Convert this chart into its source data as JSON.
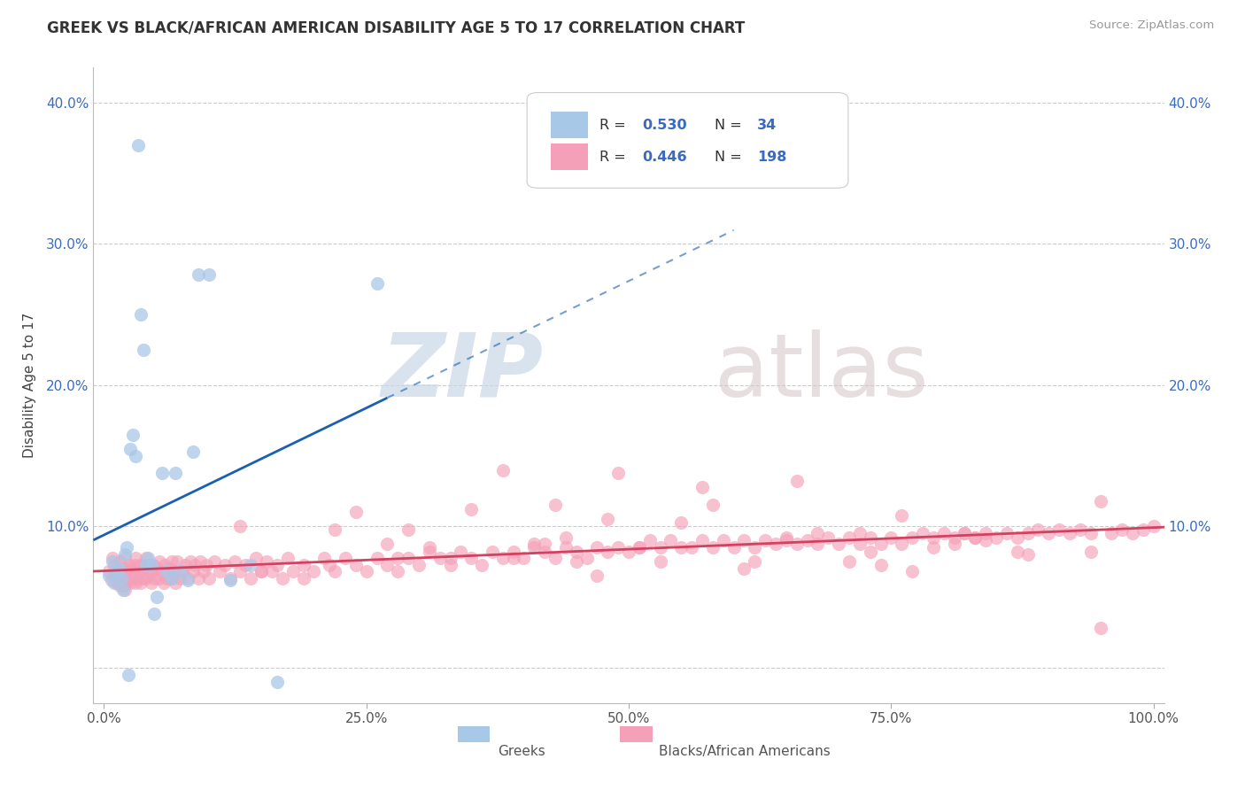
{
  "title": "GREEK VS BLACK/AFRICAN AMERICAN DISABILITY AGE 5 TO 17 CORRELATION CHART",
  "source": "Source: ZipAtlas.com",
  "ylabel": "Disability Age 5 to 17",
  "xlim": [
    -0.01,
    1.01
  ],
  "ylim": [
    -0.025,
    0.425
  ],
  "xticks": [
    0.0,
    0.25,
    0.5,
    0.75,
    1.0
  ],
  "xticklabels": [
    "0.0%",
    "25.0%",
    "50.0%",
    "75.0%",
    "100.0%"
  ],
  "yticks": [
    0.0,
    0.1,
    0.2,
    0.3,
    0.4
  ],
  "yticklabels": [
    "",
    "10.0%",
    "20.0%",
    "30.0%",
    "40.0%"
  ],
  "right_ytick_labels": [
    "",
    "10.0%",
    "20.0%",
    "30.0%",
    "40.0%"
  ],
  "greek_color": "#a8c8e8",
  "black_color": "#f4a0b8",
  "greek_line_color": "#1a5fb4",
  "black_line_color": "#d44060",
  "background_color": "#ffffff",
  "greek_scatter_x": [
    0.005,
    0.008,
    0.01,
    0.012,
    0.015,
    0.017,
    0.018,
    0.02,
    0.022,
    0.023,
    0.025,
    0.028,
    0.03,
    0.033,
    0.035,
    0.038,
    0.04,
    0.042,
    0.045,
    0.048,
    0.05,
    0.055,
    0.06,
    0.065,
    0.068,
    0.072,
    0.08,
    0.085,
    0.09,
    0.1,
    0.12,
    0.14,
    0.165,
    0.26
  ],
  "greek_scatter_y": [
    0.065,
    0.075,
    0.06,
    0.068,
    0.07,
    0.063,
    0.055,
    0.08,
    0.085,
    -0.005,
    0.155,
    0.165,
    0.15,
    0.37,
    0.25,
    0.225,
    0.073,
    0.078,
    0.073,
    0.038,
    0.05,
    0.138,
    0.068,
    0.063,
    0.138,
    0.068,
    0.062,
    0.153,
    0.278,
    0.278,
    0.062,
    0.073,
    -0.01,
    0.272
  ],
  "black_scatter_x": [
    0.005,
    0.007,
    0.008,
    0.01,
    0.01,
    0.012,
    0.013,
    0.015,
    0.015,
    0.017,
    0.018,
    0.019,
    0.02,
    0.02,
    0.02,
    0.022,
    0.023,
    0.024,
    0.025,
    0.025,
    0.027,
    0.028,
    0.03,
    0.03,
    0.03,
    0.032,
    0.033,
    0.035,
    0.035,
    0.037,
    0.038,
    0.04,
    0.04,
    0.042,
    0.043,
    0.045,
    0.045,
    0.047,
    0.048,
    0.05,
    0.052,
    0.053,
    0.055,
    0.057,
    0.058,
    0.06,
    0.062,
    0.063,
    0.065,
    0.067,
    0.068,
    0.07,
    0.072,
    0.075,
    0.077,
    0.08,
    0.082,
    0.085,
    0.087,
    0.09,
    0.092,
    0.095,
    0.098,
    0.1,
    0.105,
    0.11,
    0.115,
    0.12,
    0.125,
    0.13,
    0.135,
    0.14,
    0.145,
    0.15,
    0.155,
    0.16,
    0.165,
    0.17,
    0.175,
    0.18,
    0.19,
    0.2,
    0.21,
    0.215,
    0.22,
    0.23,
    0.24,
    0.25,
    0.26,
    0.27,
    0.28,
    0.29,
    0.3,
    0.31,
    0.32,
    0.33,
    0.34,
    0.35,
    0.36,
    0.37,
    0.38,
    0.39,
    0.4,
    0.41,
    0.42,
    0.43,
    0.44,
    0.45,
    0.46,
    0.47,
    0.48,
    0.49,
    0.5,
    0.51,
    0.52,
    0.53,
    0.54,
    0.55,
    0.57,
    0.58,
    0.59,
    0.6,
    0.61,
    0.62,
    0.63,
    0.64,
    0.65,
    0.66,
    0.67,
    0.68,
    0.69,
    0.7,
    0.71,
    0.72,
    0.73,
    0.74,
    0.75,
    0.76,
    0.77,
    0.78,
    0.79,
    0.8,
    0.81,
    0.82,
    0.83,
    0.84,
    0.85,
    0.86,
    0.87,
    0.88,
    0.89,
    0.9,
    0.91,
    0.92,
    0.93,
    0.94,
    0.95,
    0.96,
    0.97,
    0.98,
    0.99,
    1.0,
    0.49,
    0.38,
    0.66,
    0.72,
    0.84,
    0.55,
    0.45,
    0.31,
    0.57,
    0.43,
    0.88,
    0.76,
    0.28,
    0.15,
    0.22,
    0.48,
    0.19,
    0.42,
    0.35,
    0.61,
    0.58,
    0.79,
    0.68,
    0.74,
    0.81,
    0.95,
    0.33,
    0.13,
    0.27,
    0.82,
    0.53,
    0.41,
    0.87,
    0.65,
    0.71,
    0.29,
    0.51,
    0.44,
    0.77,
    0.94,
    0.24,
    0.62,
    0.56,
    0.83,
    0.39,
    0.47,
    0.73
  ],
  "black_scatter_y": [
    0.068,
    0.062,
    0.078,
    0.065,
    0.072,
    0.06,
    0.068,
    0.058,
    0.075,
    0.063,
    0.07,
    0.058,
    0.065,
    0.078,
    0.055,
    0.062,
    0.068,
    0.073,
    0.06,
    0.07,
    0.063,
    0.068,
    0.06,
    0.073,
    0.078,
    0.063,
    0.068,
    0.06,
    0.073,
    0.063,
    0.07,
    0.063,
    0.078,
    0.065,
    0.073,
    0.06,
    0.068,
    0.073,
    0.063,
    0.07,
    0.063,
    0.075,
    0.068,
    0.06,
    0.073,
    0.063,
    0.07,
    0.063,
    0.075,
    0.068,
    0.06,
    0.075,
    0.063,
    0.068,
    0.073,
    0.063,
    0.075,
    0.068,
    0.073,
    0.063,
    0.075,
    0.068,
    0.073,
    0.063,
    0.075,
    0.068,
    0.073,
    0.063,
    0.075,
    0.068,
    0.073,
    0.063,
    0.078,
    0.068,
    0.075,
    0.068,
    0.073,
    0.063,
    0.078,
    0.068,
    0.073,
    0.068,
    0.078,
    0.073,
    0.068,
    0.078,
    0.073,
    0.068,
    0.078,
    0.073,
    0.068,
    0.078,
    0.073,
    0.082,
    0.078,
    0.073,
    0.082,
    0.078,
    0.073,
    0.082,
    0.078,
    0.082,
    0.078,
    0.085,
    0.082,
    0.078,
    0.085,
    0.082,
    0.078,
    0.085,
    0.082,
    0.085,
    0.082,
    0.085,
    0.09,
    0.085,
    0.09,
    0.085,
    0.09,
    0.085,
    0.09,
    0.085,
    0.09,
    0.085,
    0.09,
    0.088,
    0.09,
    0.088,
    0.09,
    0.088,
    0.092,
    0.088,
    0.092,
    0.088,
    0.092,
    0.088,
    0.092,
    0.088,
    0.092,
    0.095,
    0.092,
    0.095,
    0.092,
    0.095,
    0.092,
    0.095,
    0.092,
    0.095,
    0.092,
    0.095,
    0.098,
    0.095,
    0.098,
    0.095,
    0.098,
    0.095,
    0.028,
    0.095,
    0.098,
    0.095,
    0.098,
    0.1,
    0.138,
    0.14,
    0.132,
    0.095,
    0.09,
    0.103,
    0.075,
    0.085,
    0.128,
    0.115,
    0.08,
    0.108,
    0.078,
    0.068,
    0.098,
    0.105,
    0.063,
    0.088,
    0.112,
    0.07,
    0.115,
    0.085,
    0.095,
    0.073,
    0.088,
    0.118,
    0.078,
    0.1,
    0.088,
    0.095,
    0.075,
    0.088,
    0.082,
    0.092,
    0.075,
    0.098,
    0.085,
    0.092,
    0.068,
    0.082,
    0.11,
    0.075,
    0.085,
    0.092,
    0.078,
    0.065,
    0.082
  ]
}
